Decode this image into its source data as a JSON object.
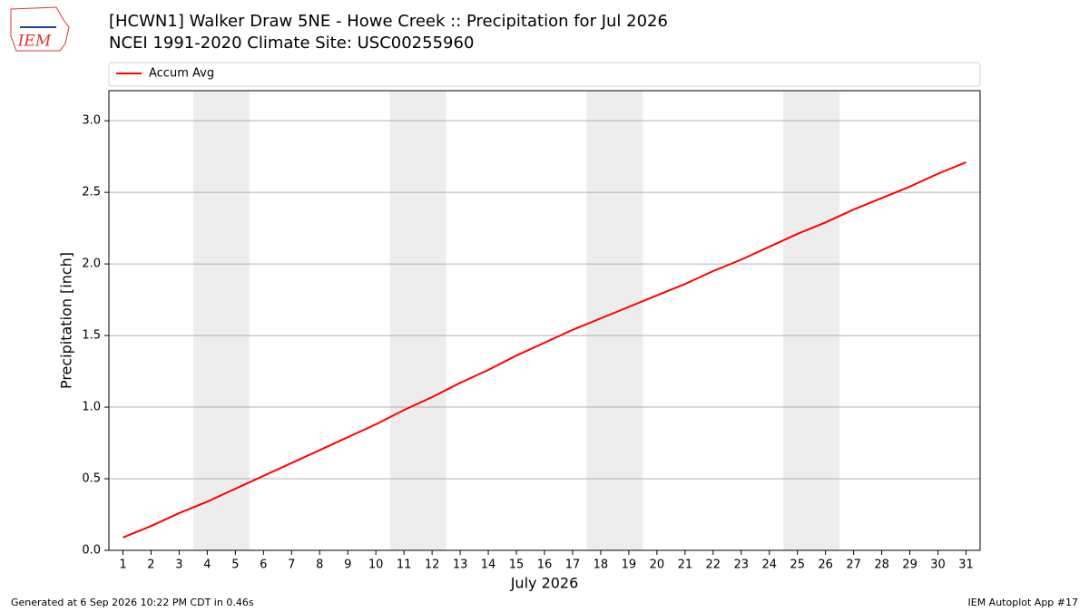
{
  "logo": "IEM",
  "footer_left": "Generated at 6 Sep 2026 10:22 PM CDT in 0.46s",
  "footer_right": "IEM Autoplot App #17",
  "chart_data": {
    "type": "line",
    "title": "[HCWN1] Walker Draw 5NE - Howe Creek :: Precipitation for Jul 2026",
    "subtitle": "NCEI 1991-2020 Climate Site: USC00255960",
    "x_label": "July 2026",
    "y_label": "Precipitation [inch]",
    "x": [
      1,
      2,
      3,
      4,
      5,
      6,
      7,
      8,
      9,
      10,
      11,
      12,
      13,
      14,
      15,
      16,
      17,
      18,
      19,
      20,
      21,
      22,
      23,
      24,
      25,
      26,
      27,
      28,
      29,
      30,
      31
    ],
    "series": [
      {
        "name": "Accum Avg",
        "color": "#ff0000",
        "values": [
          0.09,
          0.17,
          0.26,
          0.34,
          0.43,
          0.52,
          0.61,
          0.7,
          0.79,
          0.88,
          0.98,
          1.07,
          1.17,
          1.26,
          1.36,
          1.45,
          1.54,
          1.62,
          1.7,
          1.78,
          1.86,
          1.95,
          2.03,
          2.12,
          2.21,
          2.29,
          2.38,
          2.46,
          2.54,
          2.63,
          2.71
        ]
      }
    ],
    "xlim": [
      0.5,
      31.5
    ],
    "xticks": [
      1,
      2,
      3,
      4,
      5,
      6,
      7,
      8,
      9,
      10,
      11,
      12,
      13,
      14,
      15,
      16,
      17,
      18,
      19,
      20,
      21,
      22,
      23,
      24,
      25,
      26,
      27,
      28,
      29,
      30,
      31
    ],
    "ylim": [
      0,
      3.21
    ],
    "yticks": [
      {
        "value": 0,
        "label": "0.0"
      },
      0.5,
      {
        "value": 1,
        "label": "1.0"
      },
      1.5,
      {
        "value": 2,
        "label": "2.0"
      },
      2.5,
      {
        "value": 3,
        "label": "3.0"
      }
    ],
    "shaded_spans": [
      [
        3.5,
        5.5
      ],
      [
        10.5,
        12.5
      ],
      [
        17.5,
        19.5
      ],
      [
        24.5,
        26.5
      ]
    ],
    "shade_color": "#ededed",
    "grid": "y",
    "legend": "top"
  }
}
